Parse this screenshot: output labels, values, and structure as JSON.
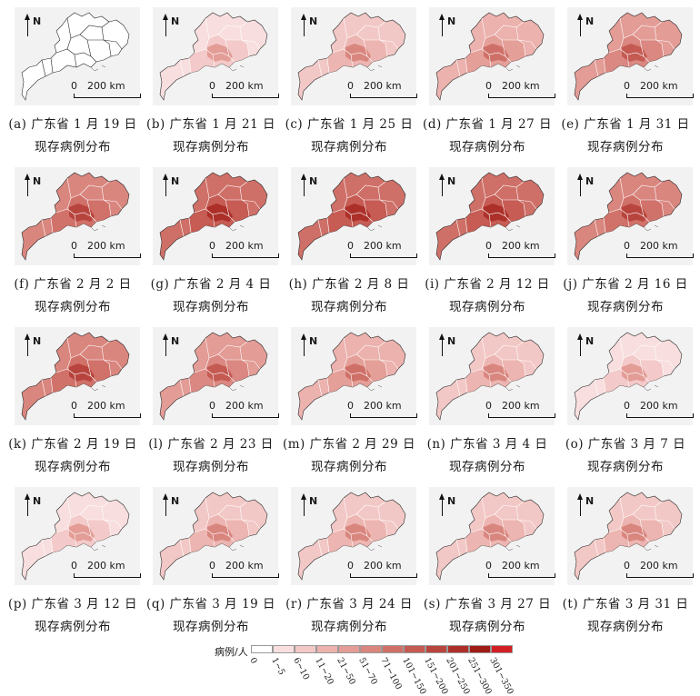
{
  "common": {
    "north_label": "N",
    "scale_zero": "0",
    "scale_distance": "200 km"
  },
  "panels": [
    {
      "letter": "(a)",
      "caption_line1": "广东省 1 月 19 日",
      "caption_line2": "现存病例分布",
      "level": 0
    },
    {
      "letter": "(b)",
      "caption_line1": "广东省 1 月 21 日",
      "caption_line2": "现存病例分布",
      "level": 1
    },
    {
      "letter": "(c)",
      "caption_line1": "广东省 1 月 25 日",
      "caption_line2": "现存病例分布",
      "level": 2
    },
    {
      "letter": "(d)",
      "caption_line1": "广东省 1 月 27 日",
      "caption_line2": "现存病例分布",
      "level": 3
    },
    {
      "letter": "(e)",
      "caption_line1": "广东省 1 月 31 日",
      "caption_line2": "现存病例分布",
      "level": 4
    },
    {
      "letter": "(f)",
      "caption_line1": "广东省 2 月 2 日",
      "caption_line2": "现存病例分布",
      "level": 5
    },
    {
      "letter": "(g)",
      "caption_line1": "广东省 2 月 4 日",
      "caption_line2": "现存病例分布",
      "level": 6
    },
    {
      "letter": "(h)",
      "caption_line1": "广东省 2 月 8 日",
      "caption_line2": "现存病例分布",
      "level": 6
    },
    {
      "letter": "(i)",
      "caption_line1": "广东省 2 月 12 日",
      "caption_line2": "现存病例分布",
      "level": 6
    },
    {
      "letter": "(j)",
      "caption_line1": "广东省 2 月 16 日",
      "caption_line2": "现存病例分布",
      "level": 5
    },
    {
      "letter": "(k)",
      "caption_line1": "广东省 2 月 19 日",
      "caption_line2": "现存病例分布",
      "level": 5
    },
    {
      "letter": "(l)",
      "caption_line1": "广东省 2 月 23 日",
      "caption_line2": "现存病例分布",
      "level": 4
    },
    {
      "letter": "(m)",
      "caption_line1": "广东省 2 月 29 日",
      "caption_line2": "现存病例分布",
      "level": 3
    },
    {
      "letter": "(n)",
      "caption_line1": "广东省 3 月 4 日",
      "caption_line2": "现存病例分布",
      "level": 2
    },
    {
      "letter": "(o)",
      "caption_line1": "广东省 3 月 7 日",
      "caption_line2": "现存病例分布",
      "level": 1
    },
    {
      "letter": "(p)",
      "caption_line1": "广东省 3 月 12 日",
      "caption_line2": "现存病例分布",
      "level": 1
    },
    {
      "letter": "(q)",
      "caption_line1": "广东省 3 月 19 日",
      "caption_line2": "现存病例分布",
      "level": 2
    },
    {
      "letter": "(r)",
      "caption_line1": "广东省 3 月 24 日",
      "caption_line2": "现存病例分布",
      "level": 2
    },
    {
      "letter": "(s)",
      "caption_line1": "广东省 3 月 27 日",
      "caption_line2": "现存病例分布",
      "level": 2
    },
    {
      "letter": "(t)",
      "caption_line1": "广东省 3 月 31 日",
      "caption_line2": "现存病例分布",
      "level": 2
    }
  ],
  "legend": {
    "title": "病例/人",
    "classes": [
      {
        "label": "0",
        "color": "#ffffff"
      },
      {
        "label": "1~5",
        "color": "#f8dede"
      },
      {
        "label": "6~10",
        "color": "#f2c8c6"
      },
      {
        "label": "11~20",
        "color": "#ecb2ae"
      },
      {
        "label": "21~50",
        "color": "#e39c96"
      },
      {
        "label": "51~70",
        "color": "#d9867f"
      },
      {
        "label": "71~100",
        "color": "#cf7068"
      },
      {
        "label": "101~150",
        "color": "#c45a52"
      },
      {
        "label": "151~200",
        "color": "#b8453d"
      },
      {
        "label": "201~250",
        "color": "#ac3029"
      },
      {
        "label": "251~300",
        "color": "#a01d17"
      },
      {
        "label": "301~350",
        "color": "#d11f24"
      }
    ]
  }
}
